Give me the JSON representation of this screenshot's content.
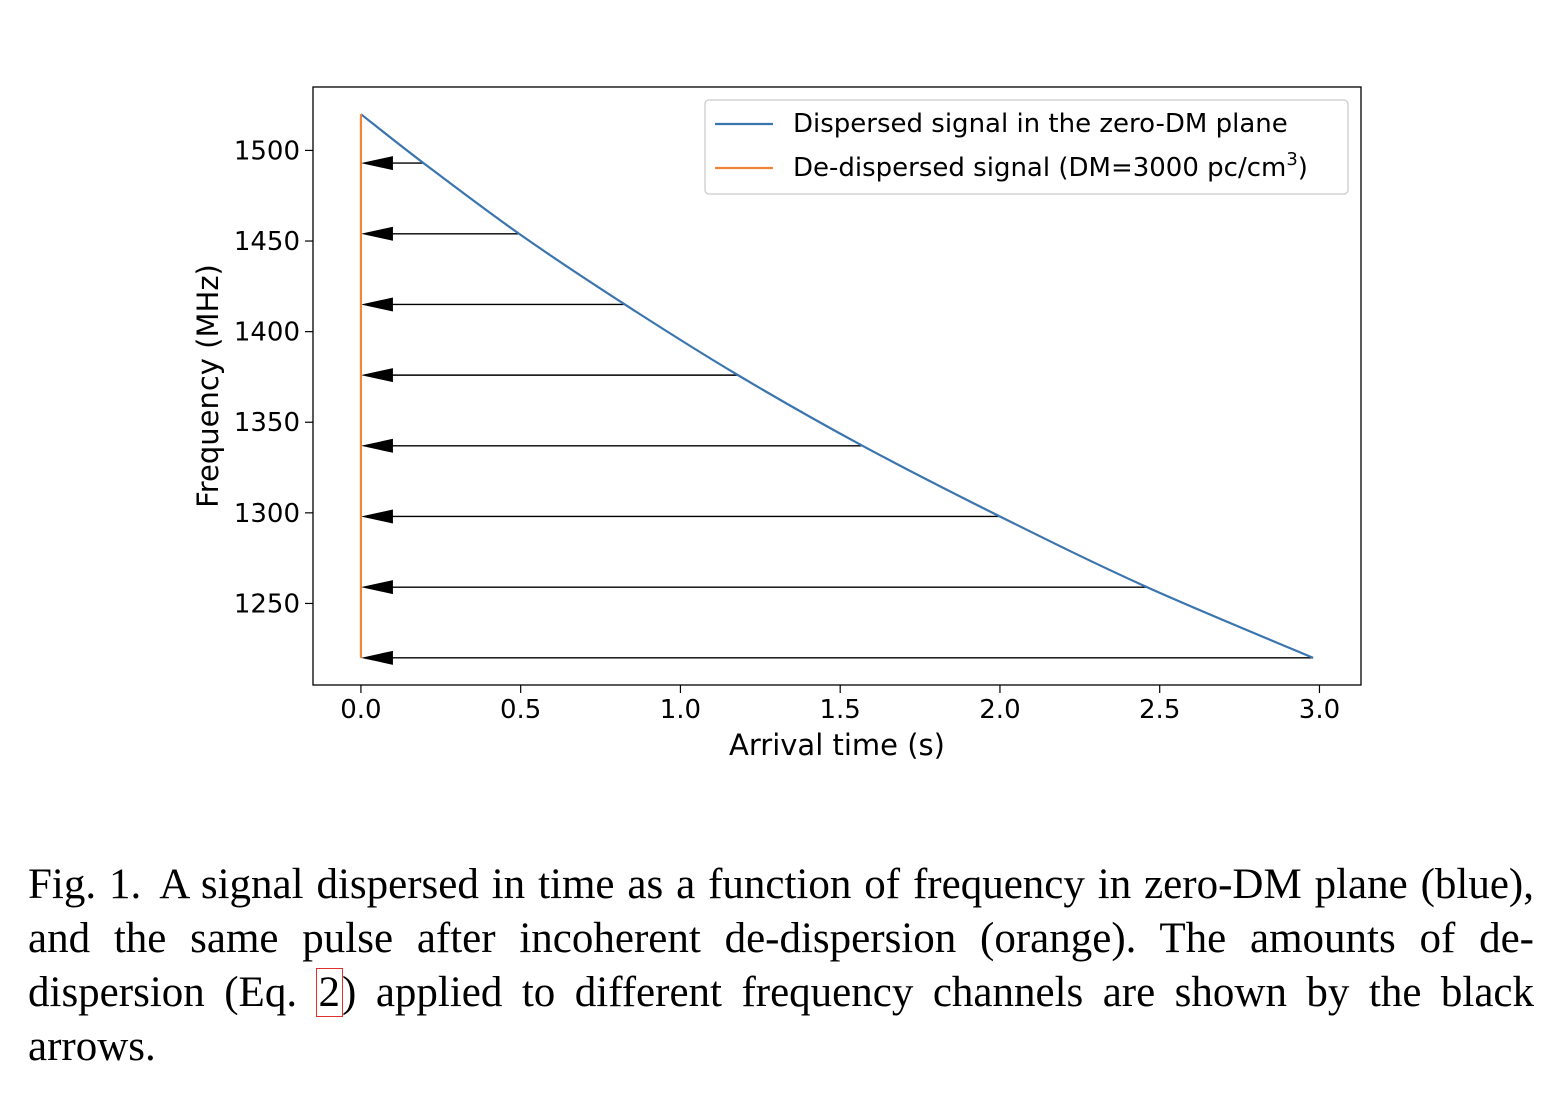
{
  "chart_data": {
    "type": "line",
    "xlabel": "Arrival time (s)",
    "ylabel": "Frequency (MHz)",
    "xlim": [
      -0.15,
      3.13
    ],
    "ylim": [
      1205,
      1535
    ],
    "xticks": [
      0.0,
      0.5,
      1.0,
      1.5,
      2.0,
      2.5,
      3.0
    ],
    "xtick_labels": [
      "0.0",
      "0.5",
      "1.0",
      "1.5",
      "2.0",
      "2.5",
      "3.0"
    ],
    "yticks": [
      1250,
      1300,
      1350,
      1400,
      1450,
      1500
    ],
    "ytick_labels": [
      "1250",
      "1300",
      "1350",
      "1400",
      "1450",
      "1500"
    ],
    "legend_position": "top-right",
    "series": [
      {
        "name": "Dispersed signal in the zero-DM plane",
        "color": "#3b75af",
        "x": [
          0.0,
          0.196,
          0.495,
          0.826,
          1.18,
          1.57,
          2.0,
          2.46,
          2.98
        ],
        "y": [
          1520,
          1493,
          1454,
          1415,
          1376,
          1337,
          1298,
          1259,
          1220
        ]
      },
      {
        "name": "De-dispersed signal (DM=3000 pc/cm",
        "name_sup": "3",
        "name_suffix": ")",
        "color": "#ef8636",
        "x": [
          0.0,
          0.0
        ],
        "y": [
          1220,
          1520
        ]
      }
    ],
    "arrows": {
      "color": "#000000",
      "items": [
        {
          "from_x": 0.196,
          "to_x": 0.0,
          "y": 1493
        },
        {
          "from_x": 0.495,
          "to_x": 0.0,
          "y": 1454
        },
        {
          "from_x": 0.826,
          "to_x": 0.0,
          "y": 1415
        },
        {
          "from_x": 1.18,
          "to_x": 0.0,
          "y": 1376
        },
        {
          "from_x": 1.57,
          "to_x": 0.0,
          "y": 1337
        },
        {
          "from_x": 2.0,
          "to_x": 0.0,
          "y": 1298
        },
        {
          "from_x": 2.46,
          "to_x": 0.0,
          "y": 1259
        },
        {
          "from_x": 2.98,
          "to_x": 0.0,
          "y": 1220
        }
      ]
    }
  },
  "caption": {
    "figure_number": "Fig. 1.",
    "text_before": "A signal dispersed in time as a function of frequency in zero-DM plane (blue), and the same pulse after incoherent de-dispersion (orange). The amounts of de-dispersion (Eq. ",
    "equation_ref": "2",
    "text_after": ") applied to different frequency channels are shown by the black arrows."
  }
}
